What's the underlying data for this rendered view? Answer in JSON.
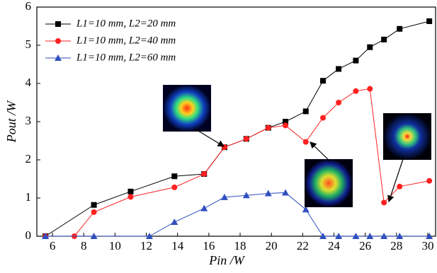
{
  "chart_data": {
    "type": "line",
    "x_label": "Pin /W",
    "y_label": "Pout /W",
    "xlim": [
      5,
      30.5
    ],
    "ylim": [
      0,
      6
    ],
    "xticks": [
      6,
      8,
      10,
      12,
      14,
      16,
      18,
      20,
      22,
      24,
      26,
      28,
      30
    ],
    "yticks": [
      0,
      1,
      2,
      3,
      4,
      5,
      6
    ],
    "series": [
      {
        "name": "L1=10 mm, L2=20 mm",
        "color": "#000000",
        "marker": "square",
        "x": [
          5.55,
          8.65,
          11.0,
          13.8,
          15.7,
          17.0,
          18.4,
          19.8,
          20.9,
          22.2,
          23.3,
          24.3,
          25.4,
          26.3,
          27.2,
          28.2,
          30.1
        ],
        "values": [
          0,
          0.82,
          1.17,
          1.57,
          1.63,
          2.33,
          2.55,
          2.84,
          3.0,
          3.27,
          4.07,
          4.38,
          4.6,
          4.95,
          5.15,
          5.43,
          5.63
        ]
      },
      {
        "name": "L1=10 mm, L2=40 mm",
        "color": "#ff2020",
        "marker": "circle",
        "x": [
          5.55,
          7.4,
          8.65,
          11.0,
          13.8,
          15.7,
          17.0,
          18.4,
          19.8,
          20.9,
          22.2,
          23.3,
          24.3,
          25.4,
          26.3,
          27.2,
          28.2,
          30.1
        ],
        "values": [
          0,
          0,
          0.63,
          1.03,
          1.28,
          1.63,
          2.33,
          2.55,
          2.84,
          2.9,
          2.47,
          3.1,
          3.5,
          3.8,
          3.86,
          0.88,
          1.3,
          1.45
        ]
      },
      {
        "name": "L1=10 mm, L2=60 mm",
        "color": "#3050c0",
        "marker": "triangle",
        "x": [
          5.55,
          8.65,
          12.2,
          13.8,
          15.7,
          17.0,
          18.4,
          19.8,
          20.9,
          22.2,
          23.3,
          24.3,
          25.4,
          26.3,
          27.2,
          28.2,
          30.1
        ],
        "values": [
          0,
          0,
          0,
          0.37,
          0.73,
          1.02,
          1.07,
          1.12,
          1.14,
          0.7,
          0,
          0,
          0,
          0,
          0,
          0,
          0
        ]
      }
    ]
  }
}
